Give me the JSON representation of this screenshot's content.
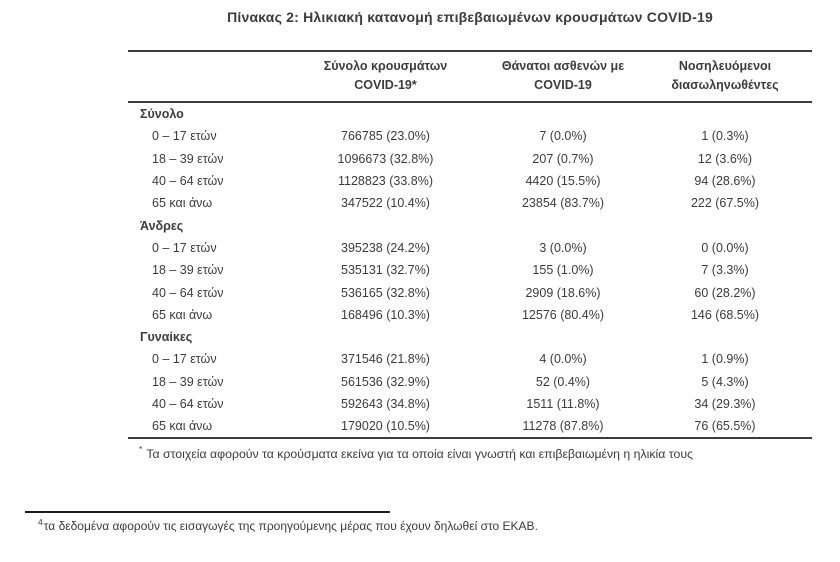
{
  "title": "Πίνακας 2: Ηλικιακή κατανομή επιβεβαιωμένων κρουσμάτων COVID-19",
  "table": {
    "columns": [
      {
        "line1": "Σύνολο κρουσμάτων",
        "line2": "COVID-19*"
      },
      {
        "line1": "Θάνατοι ασθενών με",
        "line2": "COVID-19"
      },
      {
        "line1": "Νοσηλευόμενοι",
        "line2": "διασωληνωθέντες"
      }
    ],
    "sections": [
      {
        "label": "Σύνολο",
        "rows": [
          {
            "age": "0 – 17 ετών",
            "cases": "766785 (23.0%)",
            "deaths": "7 (0.0%)",
            "intubated": "1 (0.3%)"
          },
          {
            "age": "18 – 39 ετών",
            "cases": "1096673 (32.8%)",
            "deaths": "207 (0.7%)",
            "intubated": "12 (3.6%)"
          },
          {
            "age": "40 – 64 ετών",
            "cases": "1128823 (33.8%)",
            "deaths": "4420 (15.5%)",
            "intubated": "94 (28.6%)"
          },
          {
            "age": "65 και άνω",
            "cases": "347522 (10.4%)",
            "deaths": "23854 (83.7%)",
            "intubated": "222 (67.5%)"
          }
        ]
      },
      {
        "label": "Άνδρες",
        "rows": [
          {
            "age": "0 – 17 ετών",
            "cases": "395238 (24.2%)",
            "deaths": "3 (0.0%)",
            "intubated": "0 (0.0%)"
          },
          {
            "age": "18 – 39 ετών",
            "cases": "535131 (32.7%)",
            "deaths": "155 (1.0%)",
            "intubated": "7 (3.3%)"
          },
          {
            "age": "40 – 64 ετών",
            "cases": "536165 (32.8%)",
            "deaths": "2909 (18.6%)",
            "intubated": "60 (28.2%)"
          },
          {
            "age": "65 και άνω",
            "cases": "168496 (10.3%)",
            "deaths": "12576 (80.4%)",
            "intubated": "146 (68.5%)"
          }
        ]
      },
      {
        "label": "Γυναίκες",
        "rows": [
          {
            "age": "0 – 17 ετών",
            "cases": "371546 (21.8%)",
            "deaths": "4 (0.0%)",
            "intubated": "1 (0.9%)"
          },
          {
            "age": "18 – 39 ετών",
            "cases": "561536 (32.9%)",
            "deaths": "52 (0.4%)",
            "intubated": "5 (4.3%)"
          },
          {
            "age": "40 – 64 ετών",
            "cases": "592643 (34.8%)",
            "deaths": "1511 (11.8%)",
            "intubated": "34 (29.3%)"
          },
          {
            "age": "65 και άνω",
            "cases": "179020 (10.5%)",
            "deaths": "11278 (87.8%)",
            "intubated": "76 (65.5%)"
          }
        ]
      }
    ],
    "footnote": {
      "marker": "*",
      "text": "Τα στοιχεία αφορούν τα κρούσματα εκείνα για τα οποία είναι γνωστή και επιβεβαιωμένη η ηλικία τους"
    }
  },
  "bottom_footnote": {
    "marker": "4",
    "text": "τα δεδομένα αφορούν τις εισαγωγές της προηγούμενης μέρας που έχουν δηλωθεί στο ΕΚΑΒ."
  },
  "colors": {
    "text": "#3c3c3c",
    "border": "#3c3c3c",
    "background": "#ffffff"
  }
}
